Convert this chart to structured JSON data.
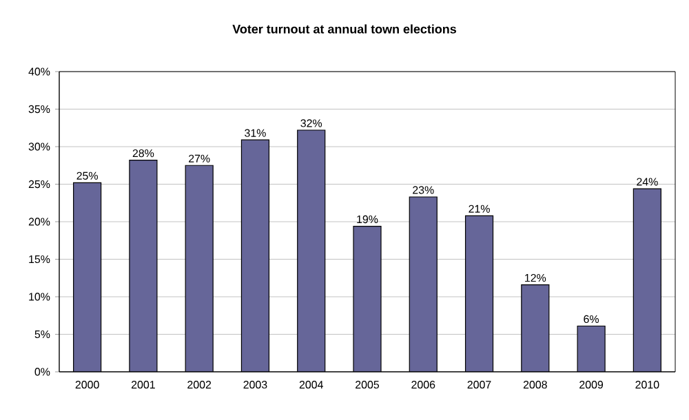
{
  "chart_data": {
    "type": "bar",
    "title": "Voter turnout at annual town elections",
    "categories": [
      "2000",
      "2001",
      "2002",
      "2003",
      "2004",
      "2005",
      "2006",
      "2007",
      "2008",
      "2009",
      "2010"
    ],
    "values": [
      25.2,
      28.2,
      27.5,
      30.9,
      32.2,
      19.4,
      23.3,
      20.8,
      11.6,
      6.1,
      24.4
    ],
    "value_labels": [
      "25%",
      "28%",
      "27%",
      "31%",
      "32%",
      "19%",
      "23%",
      "21%",
      "12%",
      "6%",
      "24%"
    ],
    "color": "#666699",
    "ylim": [
      0,
      40
    ],
    "yticks": [
      {
        "value": 0,
        "label": "0%"
      },
      {
        "value": 5,
        "label": "5%"
      },
      {
        "value": 10,
        "label": "10%"
      },
      {
        "value": 15,
        "label": "15%"
      },
      {
        "value": 20,
        "label": "20%"
      },
      {
        "value": 25,
        "label": "25%"
      },
      {
        "value": 30,
        "label": "30%"
      },
      {
        "value": 35,
        "label": "35%"
      },
      {
        "value": 40,
        "label": "40%"
      }
    ],
    "grid": "y"
  }
}
